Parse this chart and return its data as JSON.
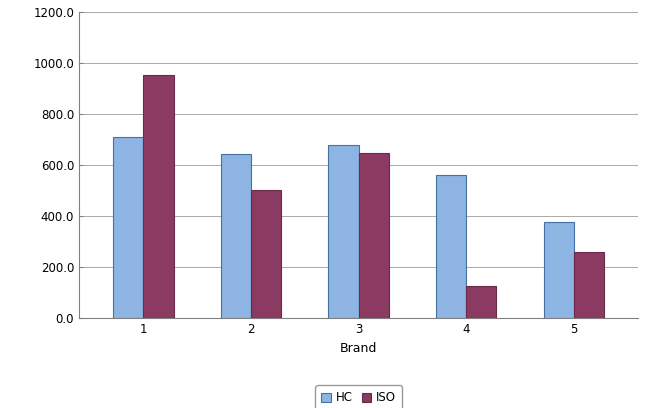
{
  "categories": [
    "1",
    "2",
    "3",
    "4",
    "5"
  ],
  "hc_values": [
    710,
    645,
    680,
    560,
    378
  ],
  "iso_values": [
    955,
    503,
    648,
    128,
    260
  ],
  "hc_color": "#8DB4E2",
  "iso_color": "#8B3A62",
  "hc_edge": "#4472A8",
  "iso_edge": "#6B2A4A",
  "xlabel": "Brand",
  "ylim": [
    0,
    1200
  ],
  "yticks": [
    0.0,
    200.0,
    400.0,
    600.0,
    800.0,
    1000.0,
    1200.0
  ],
  "ytick_labels": [
    "0.0",
    "200.0",
    "400.0",
    "600.0",
    "800.0",
    "1000.0",
    "1200.0"
  ],
  "legend_labels": [
    "HC",
    "ISO"
  ],
  "bar_width": 0.28,
  "background_color": "#FFFFFF",
  "grid_color": "#AAAAAA",
  "xlabel_fontsize": 9,
  "legend_fontsize": 8.5,
  "tick_fontsize": 8.5,
  "spine_color": "#808080"
}
